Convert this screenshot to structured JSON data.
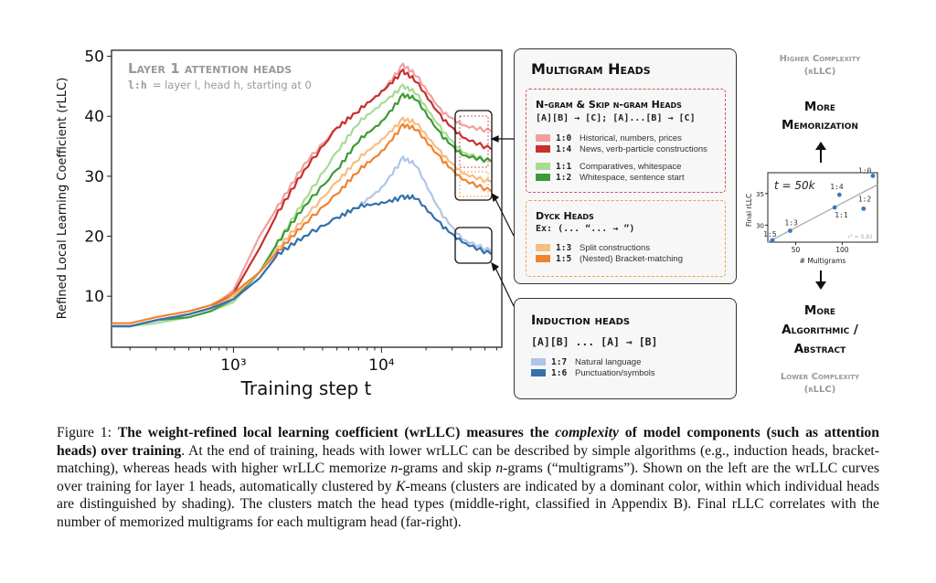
{
  "chart_data": [
    {
      "type": "line",
      "annotation_title": "Layer 1 attention heads",
      "annotation_subtitle_key": "l:h",
      "annotation_subtitle": "= layer l, head h, starting at 0",
      "xlabel": "Training step t",
      "ylabel": "Refined Local Learning Coefficient (rLLC)",
      "xscale": "log",
      "xlim": [
        150,
        65000
      ],
      "ylim": [
        1.5,
        51
      ],
      "x_tick_labels": [
        "10³",
        "10⁴"
      ],
      "x_ticks": [
        1000,
        10000
      ],
      "y_ticks": [
        10,
        20,
        30,
        40,
        50
      ],
      "grid": false,
      "x": [
        150,
        200,
        300,
        500,
        700,
        1000,
        1500,
        2000,
        3000,
        5000,
        7000,
        10000,
        14000,
        17000,
        25000,
        35000,
        55000
      ],
      "series": [
        {
          "name": "1:0",
          "color": "#f0a0a0",
          "values": [
            5,
            5,
            6,
            7,
            8,
            11,
            20,
            25,
            32,
            38,
            41,
            44,
            48.5,
            47,
            41,
            38.5,
            37.5
          ]
        },
        {
          "name": "1:4",
          "color": "#c8302e",
          "values": [
            5,
            5,
            6,
            7,
            8,
            10.5,
            18,
            24,
            31,
            38,
            41,
            44,
            47.5,
            46,
            40,
            36.5,
            34.5
          ]
        },
        {
          "name": "1:1",
          "color": "#a6dc94",
          "values": [
            5,
            5,
            5.5,
            6.5,
            7.5,
            9,
            14,
            19,
            26,
            34,
            39,
            42,
            45,
            44,
            38,
            34,
            32.5
          ]
        },
        {
          "name": "1:2",
          "color": "#3e9a35",
          "values": [
            5,
            5,
            6,
            6.5,
            7.5,
            9.5,
            14,
            19,
            25,
            31,
            36,
            39,
            43.5,
            43,
            37,
            33.5,
            32.5
          ]
        },
        {
          "name": "1:3",
          "color": "#f8bd80",
          "values": [
            5,
            5,
            6,
            7,
            8,
            10,
            14,
            18,
            23,
            29,
            33,
            36,
            39.5,
            39,
            34,
            30.5,
            29
          ]
        },
        {
          "name": "1:5",
          "color": "#ef8330",
          "values": [
            5.5,
            5.5,
            6.5,
            7.5,
            8.5,
            10.5,
            14,
            17.5,
            22,
            27,
            31,
            34,
            38.5,
            38,
            33,
            29.5,
            27.5
          ]
        },
        {
          "name": "1:7",
          "color": "#aec6e6",
          "values": [
            5,
            5,
            6,
            7,
            8,
            9.5,
            13,
            17,
            20,
            23,
            25,
            28,
            33,
            32,
            24,
            19.5,
            17.5
          ]
        },
        {
          "name": "1:6",
          "color": "#3470ac",
          "values": [
            5,
            5,
            6,
            7,
            8,
            9.5,
            13,
            17,
            20,
            23,
            25,
            25.5,
            26.5,
            26.5,
            22,
            19,
            17
          ]
        }
      ]
    },
    {
      "type": "scatter",
      "annotation": "t = 50k",
      "xlabel": "# Multigrams",
      "ylabel": "Final rLLC",
      "xlim": [
        20,
        138
      ],
      "ylim": [
        27.3,
        38.3
      ],
      "x_ticks": [
        50,
        100
      ],
      "y_ticks": [
        30,
        35
      ],
      "points": [
        {
          "label": "1:5",
          "x": 25,
          "y": 27.6
        },
        {
          "label": "1:3",
          "x": 44,
          "y": 29.1
        },
        {
          "label": "1:1",
          "x": 92,
          "y": 32.8
        },
        {
          "label": "1:4",
          "x": 97,
          "y": 34.8
        },
        {
          "label": "1:2",
          "x": 123,
          "y": 32.6
        },
        {
          "label": "1:0",
          "x": 133,
          "y": 37.8
        }
      ],
      "fit_line": {
        "x": [
          20,
          138
        ],
        "y": [
          27.3,
          36.4
        ]
      },
      "r2_label": "r² = 0.81",
      "point_color": "#3a78c0"
    }
  ],
  "multigram": {
    "title": "Multigram Heads",
    "ngram": {
      "title": "N-gram & Skip n-gram Heads",
      "pattern": "[A][B] → [C]; [A]...[B] → [C]",
      "border_color": "#d9534f",
      "items": [
        {
          "id": "1:0",
          "desc": "Historical, numbers, prices",
          "color": "#f0a0a0"
        },
        {
          "id": "1:4",
          "desc": "News, verb-particle constructions",
          "color": "#c8302e"
        },
        {
          "id": "1:1",
          "desc": "Comparatives, whitespace",
          "color": "#a6dc94"
        },
        {
          "id": "1:2",
          "desc": "Whitespace, sentence start",
          "color": "#3e9a35"
        }
      ]
    },
    "dyck": {
      "title": "Dyck Heads",
      "pattern": "Ex: (... “... → ”)",
      "border_color": "#f0a050",
      "items": [
        {
          "id": "1:3",
          "desc": "Split constructions",
          "color": "#f8bd80"
        },
        {
          "id": "1:5",
          "desc": "(Nested) Bracket-matching",
          "color": "#ef8330"
        }
      ]
    }
  },
  "induction": {
    "title": "Induction heads",
    "pattern": "[A][B] ... [A] → [B]",
    "items": [
      {
        "id": "1:7",
        "desc": "Natural language",
        "color": "#aec6e6"
      },
      {
        "id": "1:6",
        "desc": "Punctuation/symbols",
        "color": "#3470ac"
      }
    ]
  },
  "right": {
    "higher": "Higher Complexity",
    "higher_unit": "(rLLC)",
    "more_mem_1": "More",
    "more_mem_2": "Memorization",
    "more_alg_1": "More",
    "more_alg_2": "Algorithmic /",
    "more_alg_3": "Abstract",
    "lower": "Lower Complexity",
    "lower_unit": "(rLLC)"
  },
  "caption": {
    "label": "Figure 1: ",
    "bold_1": "The weight-refined local learning coefficient (wrLLC) measures the ",
    "bold_italic": "complexity",
    "bold_2": " of model components (such as attention heads) over training",
    "text_1": ". At the end of training, heads with lower wrLLC can be described by simple algorithms (e.g., induction heads, bracket-matching), whereas heads with higher wrLLC memorize ",
    "n1": "n",
    "text_2": "-grams and skip ",
    "n2": "n",
    "text_3": "-grams (“multigrams”).  Shown on the left are the wrLLC curves over training for layer 1 heads, automatically clustered by ",
    "k": "K",
    "text_4": "-means (clusters are indicated by a dominant color, within which individual heads are distinguished by shading). The clusters match the head types (middle-right, classified in Appendix B). Final rLLC correlates with the number of memorized multigrams for each multigram head (far-right)."
  }
}
